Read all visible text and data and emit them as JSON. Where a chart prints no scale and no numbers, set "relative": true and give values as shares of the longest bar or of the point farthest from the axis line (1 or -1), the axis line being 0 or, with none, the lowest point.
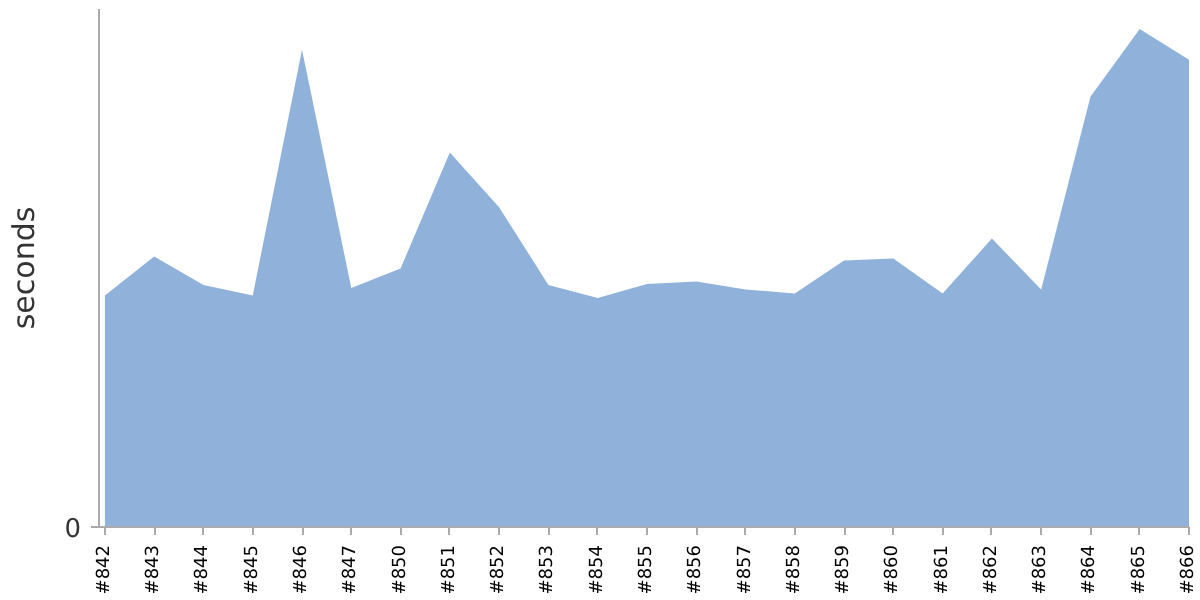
{
  "chart_data": {
    "type": "area",
    "ylabel": "seconds",
    "relative": true,
    "annotations": [
      "0"
    ],
    "categories": [
      "#842",
      "#843",
      "#844",
      "#845",
      "#846",
      "#847",
      "#850",
      "#851",
      "#852",
      "#853",
      "#854",
      "#855",
      "#856",
      "#857",
      "#858",
      "#859",
      "#860",
      "#861",
      "#862",
      "#863",
      "#864",
      "#865",
      "#866"
    ],
    "series": [
      {
        "color": "#8fb1da",
        "values": [
          0.465,
          0.543,
          0.486,
          0.465,
          0.958,
          0.48,
          0.519,
          0.752,
          0.642,
          0.486,
          0.46,
          0.488,
          0.493,
          0.477,
          0.469,
          0.535,
          0.539,
          0.469,
          0.579,
          0.477,
          0.864,
          1,
          0.938
        ]
      }
    ],
    "grid": false
  }
}
